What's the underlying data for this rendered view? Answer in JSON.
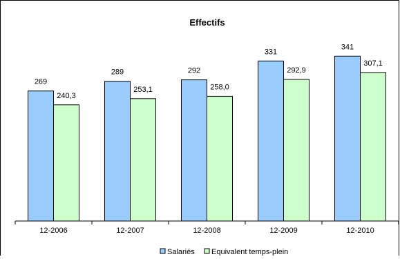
{
  "chart_data": {
    "type": "bar",
    "title": "Effectifs",
    "categories": [
      "12-2006",
      "12-2007",
      "12-2008",
      "12-2009",
      "12-2010"
    ],
    "series": [
      {
        "name": "Salariés",
        "values": [
          269,
          289,
          292,
          331,
          341
        ],
        "value_labels": [
          "269",
          "289",
          "292",
          "331",
          "341"
        ],
        "color": "#99ccff"
      },
      {
        "name": "Equivalent temps-plein",
        "values": [
          240.3,
          253.1,
          258.0,
          292.9,
          307.1
        ],
        "value_labels": [
          "240,3",
          "253,1",
          "258,0",
          "292,9",
          "307,1"
        ],
        "color": "#ccffcc"
      }
    ],
    "ylim": [
      0,
      360
    ],
    "grid": false,
    "legend_position": "bottom"
  }
}
